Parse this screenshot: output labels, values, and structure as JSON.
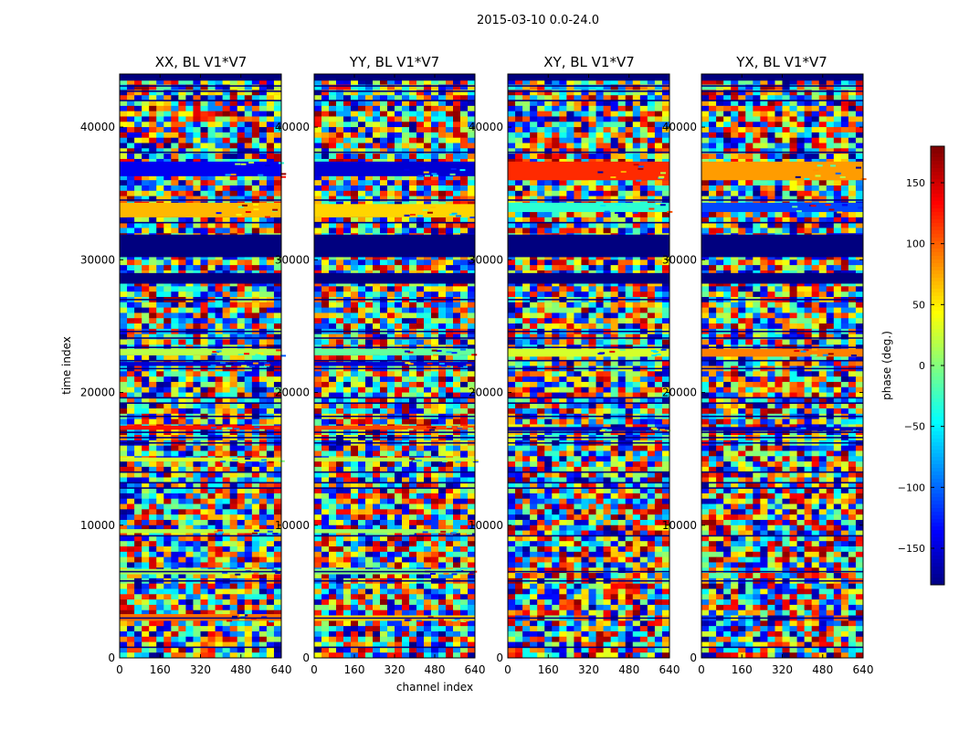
{
  "suptitle": "2015-03-10 0.0-24.0",
  "chart_data": {
    "type": "heatmap",
    "x_label": "channel index",
    "y_label": "time index",
    "x_range": [
      0,
      640
    ],
    "y_range": [
      0,
      44000
    ],
    "x_ticks": [
      "0",
      "160",
      "320",
      "480",
      "640"
    ],
    "y_ticks": [
      "0",
      "10000",
      "20000",
      "30000",
      "40000"
    ],
    "y_tick_values": [
      0,
      10000,
      20000,
      30000,
      40000
    ],
    "colormap": "jet",
    "colorbar": {
      "label": "phase (deg.)",
      "range": [
        -180,
        180
      ],
      "ticks": [
        "150",
        "100",
        "50",
        "0",
        "−50",
        "−100",
        "−150"
      ],
      "tick_values": [
        150,
        100,
        50,
        0,
        -50,
        -100,
        -150
      ]
    },
    "panels": [
      {
        "title": "XX, BL V1*V7",
        "pol": "XX"
      },
      {
        "title": "YY, BL V1*V7",
        "pol": "YY"
      },
      {
        "title": "XY, BL V1*V7",
        "pol": "XY"
      },
      {
        "title": "YX, BL V1*V7",
        "pol": "YX"
      }
    ]
  }
}
